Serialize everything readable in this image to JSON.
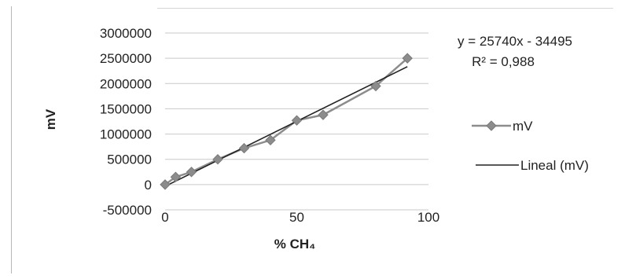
{
  "chart_data": {
    "type": "scatter",
    "xlabel": "% CH₄",
    "ylabel": "mV",
    "xlim": [
      0,
      100
    ],
    "ylim": [
      -500000,
      3000000
    ],
    "x_ticks": [
      "0",
      "50",
      "100"
    ],
    "y_ticks": [
      "3000000",
      "2500000",
      "2000000",
      "1500000",
      "1000000",
      "500000",
      "0",
      "-500000"
    ],
    "grid": true,
    "legend": "right",
    "series": [
      {
        "name": "mV",
        "color": "#8c8c8c",
        "marker": "diamond",
        "x": [
          0,
          4,
          10,
          20,
          30,
          40,
          50,
          60,
          80,
          92
        ],
        "y": [
          0,
          150000,
          250000,
          500000,
          720000,
          880000,
          1270000,
          1380000,
          1950000,
          2500000
        ]
      },
      {
        "name": "Lineal (mV)",
        "color": "#222222",
        "trendline": true,
        "slope": 25740,
        "intercept": -34495
      }
    ],
    "annotations": {
      "equation": "y = 25740x - 34495",
      "r_squared": "R² = 0,988"
    }
  }
}
